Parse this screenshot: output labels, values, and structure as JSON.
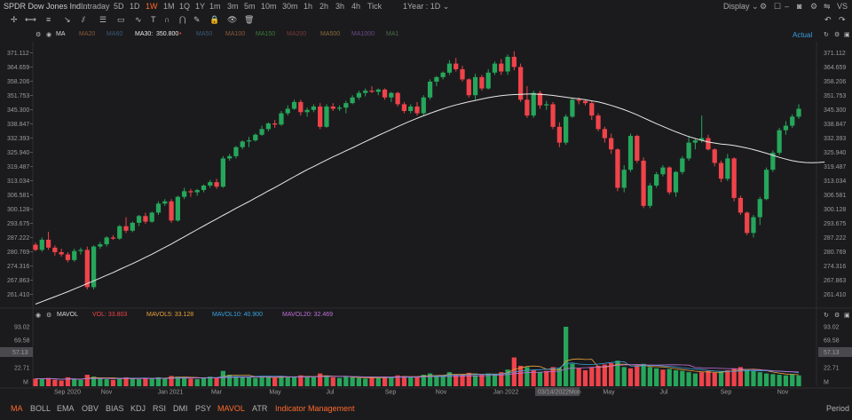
{
  "header": {
    "title": "SPDR Dow Jones Ind...",
    "periods": [
      "Intraday",
      "5D",
      "1D",
      "1W",
      "1M",
      "1Q",
      "1Y",
      "1m",
      "3m",
      "5m",
      "10m",
      "30m",
      "1h",
      "2h",
      "3h",
      "4h",
      "Tick"
    ],
    "active_period": "1W",
    "range_select": "1Year : 1D",
    "display_label": "Display",
    "ticker_right": "VS"
  },
  "mabar": {
    "ma_label": "MA",
    "ma20": "MA20",
    "ma60": "MA60",
    "ma30_label": "MA30:",
    "ma30_value": "350.800",
    "ma50": "MA50",
    "ma100": "MA100",
    "ma150": "MA150",
    "ma200": "MA200",
    "ma500": "MA500",
    "ma1000": "MA1000",
    "ma1": "MA1",
    "actual": "Actual"
  },
  "volbar": {
    "label": "MAVOL",
    "vol": "VOL: 33.803",
    "mavol5": "MAVOL5: 33.128",
    "mavol10": "MAVOL10: 40.900",
    "mavol20": "MAVOL20: 32.469"
  },
  "bottom": {
    "indicators": [
      "MA",
      "BOLL",
      "EMA",
      "OBV",
      "BIAS",
      "KDJ",
      "RSI",
      "DMI",
      "PSY",
      "MAVOL",
      "ATR"
    ],
    "active_indicators": [
      "MA",
      "MAVOL"
    ],
    "management": "Indicator Management",
    "period": "Period"
  },
  "colors": {
    "up": "#26a65b",
    "down": "#f0434a",
    "ma30": "#e8e8e8",
    "accent": "#ff6a2b",
    "mavol5": "#e8a13c",
    "mavol10": "#3aa0e0",
    "mavol20": "#c070d8"
  },
  "chart_data": {
    "type": "candlestick",
    "price_ticks": [
      "371.112",
      "364.659",
      "358.206",
      "351.753",
      "345.300",
      "338.847",
      "332.393",
      "325.940",
      "319.487",
      "313.034",
      "306.581",
      "300.128",
      "293.675",
      "287.222",
      "280.769",
      "274.316",
      "267.863",
      "261.410"
    ],
    "volume_ticks": [
      "93.02",
      "69.58",
      "57.13",
      "22.71",
      "M"
    ],
    "x_labels": [
      "Sep 2020",
      "Nov",
      "Jan 2021",
      "Mar",
      "May",
      "Jul",
      "Sep",
      "Nov",
      "Jan 2022",
      "03/14/2022Mon",
      "May",
      "Jul",
      "Sep",
      "Nov"
    ],
    "crosshair_price": "57.13",
    "ylim": [
      257,
      373
    ],
    "candles": [
      [
        284.3,
        285.2,
        281.5,
        282.0
      ],
      [
        282.0,
        287.5,
        281.2,
        286.5
      ],
      [
        286.5,
        290.0,
        282.0,
        283.0
      ],
      [
        283.0,
        284.0,
        279.5,
        281.0
      ],
      [
        281.0,
        282.5,
        279.0,
        280.0
      ],
      [
        280.0,
        281.0,
        276.5,
        277.5
      ],
      [
        277.5,
        282.5,
        276.8,
        281.5
      ],
      [
        281.5,
        283.0,
        280.0,
        282.0
      ],
      [
        282.0,
        283.5,
        264.5,
        265.5
      ],
      [
        265.5,
        284.0,
        264.5,
        283.5
      ],
      [
        283.5,
        285.5,
        282.5,
        284.5
      ],
      [
        284.5,
        288.0,
        283.5,
        287.5
      ],
      [
        287.5,
        288.5,
        286.5,
        287.0
      ],
      [
        287.0,
        293.0,
        286.5,
        292.5
      ],
      [
        292.5,
        296.5,
        289.5,
        290.5
      ],
      [
        290.5,
        294.5,
        289.8,
        294.0
      ],
      [
        294.0,
        297.5,
        292.5,
        297.0
      ],
      [
        297.0,
        298.5,
        293.5,
        294.5
      ],
      [
        294.5,
        299.0,
        294.0,
        298.5
      ],
      [
        298.5,
        303.5,
        297.5,
        302.5
      ],
      [
        302.5,
        304.5,
        301.5,
        303.5
      ],
      [
        303.5,
        304.5,
        294.0,
        295.0
      ],
      [
        295.0,
        306.0,
        294.5,
        305.5
      ],
      [
        305.5,
        309.5,
        304.5,
        308.0
      ],
      [
        308.0,
        309.0,
        305.5,
        307.5
      ],
      [
        307.5,
        309.0,
        306.0,
        308.5
      ],
      [
        308.5,
        311.0,
        307.5,
        310.5
      ],
      [
        310.5,
        313.0,
        309.5,
        312.0
      ],
      [
        312.0,
        313.5,
        309.0,
        310.0
      ],
      [
        310.0,
        323.5,
        309.5,
        322.5
      ],
      [
        322.5,
        324.5,
        321.5,
        323.5
      ],
      [
        323.5,
        328.0,
        322.5,
        327.5
      ],
      [
        327.5,
        330.5,
        326.5,
        330.0
      ],
      [
        330.0,
        332.0,
        327.5,
        330.5
      ],
      [
        330.5,
        333.5,
        330.0,
        333.0
      ],
      [
        333.0,
        337.0,
        332.5,
        335.5
      ],
      [
        335.5,
        338.5,
        334.5,
        338.0
      ],
      [
        338.0,
        339.5,
        336.0,
        337.5
      ],
      [
        337.5,
        343.5,
        337.0,
        342.5
      ],
      [
        342.5,
        346.0,
        341.5,
        344.5
      ],
      [
        344.5,
        348.5,
        344.0,
        347.5
      ],
      [
        347.5,
        348.5,
        341.5,
        343.0
      ],
      [
        343.0,
        345.0,
        341.0,
        344.0
      ],
      [
        344.0,
        346.5,
        343.0,
        345.5
      ],
      [
        345.5,
        347.0,
        335.5,
        336.5
      ],
      [
        336.5,
        346.5,
        336.0,
        345.5
      ],
      [
        345.5,
        347.0,
        343.5,
        344.5
      ],
      [
        344.5,
        346.0,
        343.5,
        345.0
      ],
      [
        345.0,
        348.0,
        342.5,
        347.0
      ],
      [
        347.0,
        350.5,
        346.5,
        349.5
      ],
      [
        349.5,
        352.5,
        348.5,
        351.5
      ],
      [
        351.5,
        353.5,
        350.0,
        352.5
      ],
      [
        352.5,
        354.5,
        351.5,
        352.0
      ],
      [
        352.0,
        353.5,
        350.5,
        353.0
      ],
      [
        353.0,
        353.5,
        348.5,
        349.5
      ],
      [
        349.5,
        352.0,
        347.5,
        351.5
      ],
      [
        351.5,
        352.0,
        345.5,
        346.5
      ],
      [
        346.5,
        347.5,
        342.5,
        343.5
      ],
      [
        343.5,
        346.5,
        342.5,
        345.5
      ],
      [
        345.5,
        347.5,
        341.5,
        342.5
      ],
      [
        342.5,
        350.5,
        341.5,
        349.5
      ],
      [
        349.5,
        357.5,
        348.5,
        356.5
      ],
      [
        356.5,
        359.0,
        354.5,
        358.5
      ],
      [
        358.5,
        361.0,
        357.5,
        360.5
      ],
      [
        360.5,
        366.0,
        359.5,
        364.5
      ],
      [
        364.5,
        367.0,
        361.0,
        362.0
      ],
      [
        362.0,
        363.5,
        356.5,
        357.5
      ],
      [
        357.5,
        358.0,
        349.5,
        350.5
      ],
      [
        350.5,
        360.0,
        348.5,
        358.5
      ],
      [
        358.5,
        359.5,
        352.5,
        353.5
      ],
      [
        353.5,
        362.0,
        353.0,
        360.5
      ],
      [
        360.5,
        365.5,
        359.5,
        364.5
      ],
      [
        364.5,
        366.5,
        359.5,
        361.0
      ],
      [
        361.0,
        368.5,
        359.5,
        367.5
      ],
      [
        367.5,
        370.0,
        361.5,
        363.0
      ],
      [
        363.0,
        364.5,
        347.5,
        348.5
      ],
      [
        348.5,
        354.5,
        340.5,
        341.5
      ],
      [
        341.5,
        352.5,
        340.5,
        351.5
      ],
      [
        351.5,
        352.5,
        344.5,
        346.0
      ],
      [
        346.0,
        348.0,
        344.0,
        346.5
      ],
      [
        346.5,
        347.5,
        335.5,
        336.5
      ],
      [
        336.5,
        338.5,
        327.5,
        329.5
      ],
      [
        329.5,
        342.0,
        328.5,
        341.0
      ],
      [
        341.0,
        349.5,
        340.5,
        348.5
      ],
      [
        348.5,
        349.5,
        346.5,
        348.0
      ],
      [
        348.0,
        348.5,
        346.0,
        347.0
      ],
      [
        347.0,
        348.0,
        339.5,
        341.5
      ],
      [
        341.5,
        342.5,
        334.5,
        335.5
      ],
      [
        335.5,
        336.5,
        329.5,
        331.5
      ],
      [
        331.5,
        333.5,
        324.5,
        326.5
      ],
      [
        326.5,
        327.0,
        308.0,
        309.5
      ],
      [
        309.5,
        319.5,
        307.5,
        317.5
      ],
      [
        317.5,
        333.5,
        316.5,
        332.5
      ],
      [
        332.5,
        333.0,
        320.5,
        321.5
      ],
      [
        321.5,
        323.0,
        300.5,
        301.5
      ],
      [
        301.5,
        311.5,
        300.5,
        310.5
      ],
      [
        310.5,
        316.5,
        309.5,
        315.5
      ],
      [
        315.5,
        319.5,
        314.5,
        318.5
      ],
      [
        318.5,
        319.0,
        306.5,
        307.5
      ],
      [
        307.5,
        317.0,
        305.5,
        316.5
      ],
      [
        316.5,
        323.5,
        315.5,
        322.5
      ],
      [
        322.5,
        332.5,
        321.5,
        329.5
      ],
      [
        329.5,
        331.5,
        326.5,
        330.5
      ],
      [
        330.5,
        341.5,
        329.5,
        331.5
      ],
      [
        331.5,
        333.0,
        326.0,
        326.5
      ],
      [
        326.5,
        327.0,
        319.0,
        320.5
      ],
      [
        320.5,
        321.5,
        312.0,
        313.5
      ],
      [
        313.5,
        324.5,
        312.5,
        322.5
      ],
      [
        322.5,
        323.0,
        303.5,
        305.0
      ],
      [
        305.0,
        306.0,
        297.5,
        298.5
      ],
      [
        298.5,
        299.0,
        288.5,
        289.5
      ],
      [
        289.5,
        297.5,
        287.5,
        296.5
      ],
      [
        296.5,
        305.5,
        293.0,
        304.5
      ],
      [
        304.5,
        318.5,
        304.0,
        317.5
      ],
      [
        317.5,
        326.0,
        316.5,
        325.0
      ],
      [
        325.0,
        336.0,
        324.0,
        335.0
      ],
      [
        335.0,
        339.0,
        333.0,
        337.0
      ],
      [
        337.0,
        342.0,
        336.0,
        341.0
      ],
      [
        341.0,
        346.5,
        340.0,
        344.5
      ]
    ],
    "volume": [
      12,
      11,
      13,
      10,
      9,
      14,
      11,
      10,
      18,
      15,
      12,
      11,
      10,
      13,
      14,
      12,
      11,
      13,
      12,
      14,
      13,
      16,
      15,
      14,
      12,
      11,
      13,
      15,
      14,
      24,
      18,
      16,
      15,
      14,
      13,
      15,
      14,
      13,
      16,
      15,
      14,
      17,
      15,
      14,
      20,
      16,
      14,
      13,
      15,
      14,
      13,
      12,
      14,
      13,
      15,
      14,
      17,
      16,
      14,
      15,
      18,
      20,
      17,
      16,
      22,
      18,
      19,
      21,
      17,
      18,
      20,
      19,
      22,
      26,
      45,
      32,
      30,
      25,
      22,
      24,
      30,
      28,
      93,
      35,
      28,
      25,
      30,
      32,
      34,
      36,
      40,
      30,
      28,
      32,
      35,
      30,
      28,
      26,
      27,
      25,
      24,
      22,
      20,
      22,
      24,
      21,
      23,
      25,
      28,
      30,
      26,
      24,
      22,
      20,
      19,
      18,
      17,
      19,
      17
    ],
    "volume_up": [
      0,
      1,
      0,
      0,
      0,
      0,
      1,
      1,
      0,
      1,
      1,
      1,
      0,
      1,
      0,
      1,
      1,
      0,
      1,
      1,
      1,
      0,
      1,
      1,
      0,
      1,
      1,
      1,
      0,
      1,
      1,
      1,
      1,
      1,
      1,
      1,
      1,
      0,
      1,
      1,
      1,
      0,
      1,
      1,
      0,
      1,
      0,
      1,
      1,
      1,
      1,
      1,
      0,
      1,
      0,
      1,
      0,
      0,
      1,
      0,
      1,
      1,
      1,
      1,
      1,
      0,
      0,
      0,
      1,
      0,
      1,
      1,
      0,
      1,
      0,
      0,
      1,
      0,
      1,
      0,
      0,
      1,
      1,
      1,
      0,
      0,
      0,
      0,
      0,
      0,
      1,
      1,
      0,
      0,
      1,
      1,
      1,
      0,
      1,
      1,
      1,
      1,
      1,
      0,
      0,
      0,
      1,
      0,
      0,
      0,
      1,
      1,
      1,
      1,
      1,
      1,
      1,
      1,
      1
    ],
    "ma30": [
      258.0,
      259.1,
      260.2,
      261.3,
      262.4,
      263.5,
      264.7,
      265.9,
      267.1,
      268.3,
      269.5,
      270.8,
      272.0,
      273.3,
      274.6,
      275.9,
      277.3,
      278.7,
      280.1,
      281.6,
      283.1,
      284.6,
      286.2,
      287.8,
      289.4,
      291.0,
      292.6,
      294.2,
      295.7,
      297.3,
      298.8,
      300.4,
      301.9,
      303.4,
      305.0,
      306.5,
      308.1,
      309.6,
      311.2,
      312.8,
      314.4,
      316.0,
      317.5,
      318.9,
      320.4,
      321.8,
      323.2,
      324.5,
      325.9,
      327.2,
      328.6,
      330.0,
      331.3,
      332.7,
      334.0,
      335.3,
      336.6,
      337.9,
      339.1,
      340.3,
      341.4,
      342.5,
      343.5,
      344.5,
      345.4,
      346.2,
      346.9,
      347.6,
      348.2,
      348.8,
      349.4,
      349.9,
      350.3,
      350.6,
      350.8,
      350.9,
      351.0,
      351.0,
      350.9,
      350.7,
      350.4,
      350.0,
      349.6,
      349.2,
      348.9,
      348.5,
      348.0,
      347.5,
      346.8,
      346.0,
      345.1,
      344.1,
      343.0,
      341.8,
      340.5,
      339.2,
      337.9,
      336.7,
      335.5,
      334.3,
      333.2,
      332.2,
      331.3,
      330.5,
      329.8,
      329.3,
      328.9,
      328.6,
      328.2,
      327.7,
      327.1,
      326.4,
      325.6,
      324.8,
      323.9,
      323.0,
      322.2,
      321.5,
      321.0,
      320.7,
      320.6,
      320.7,
      320.9
    ]
  }
}
